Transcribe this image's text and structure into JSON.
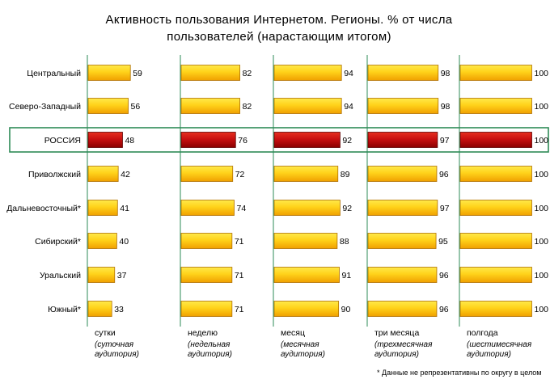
{
  "chart_data": {
    "type": "bar",
    "title": "Активность пользования Интернетом. Регионы. % от числа пользователей (нарастающим итогом)",
    "title_lines": [
      "Активность пользования Интернетом. Регионы. % от числа",
      "пользователей (нарастающим итогом)"
    ],
    "categories": [
      "Центральный",
      "Северо-Западный",
      "РОССИЯ",
      "Приволжский",
      "Дальневосточный*",
      "Сибирский*",
      "Уральский",
      "Южный*"
    ],
    "highlight_category": "РОССИЯ",
    "series": [
      {
        "name": "сутки",
        "sub": [
          "(суточная",
          "аудитория)"
        ],
        "values": [
          59,
          56,
          48,
          42,
          41,
          40,
          37,
          33
        ]
      },
      {
        "name": "неделю",
        "sub": [
          "(недельная",
          "аудитория)"
        ],
        "values": [
          82,
          82,
          76,
          72,
          74,
          71,
          71,
          71
        ]
      },
      {
        "name": "месяц",
        "sub": [
          "(месячная",
          "аудитория)"
        ],
        "values": [
          94,
          94,
          92,
          89,
          92,
          88,
          91,
          90
        ]
      },
      {
        "name": "три месяца",
        "sub": [
          "(трехмесячная",
          "аудитория)"
        ],
        "values": [
          98,
          98,
          97,
          96,
          97,
          95,
          96,
          96
        ]
      },
      {
        "name": "полгода",
        "sub": [
          "(шестимесячная",
          "аудитория)"
        ],
        "values": [
          100,
          100,
          100,
          100,
          100,
          100,
          100,
          100
        ]
      }
    ],
    "ylim": [
      0,
      100
    ],
    "colors": {
      "bar_top": "#ffe94a",
      "bar_bottom": "#f0a000",
      "bar_edge": "#b07000",
      "highlight_top": "#e63020",
      "highlight_bottom": "#8a0000",
      "highlight_edge": "#600000",
      "divider": "#2e8b57"
    }
  },
  "footnote": "* Данные не репрезентативны по округу в целом"
}
